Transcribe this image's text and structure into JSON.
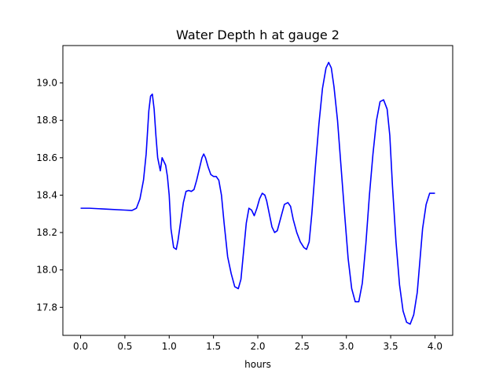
{
  "chart_data": {
    "type": "line",
    "title": "Water Depth h at gauge 2",
    "xlabel": "hours",
    "ylabel": "",
    "xlim": [
      -0.2,
      4.2
    ],
    "ylim": [
      17.65,
      19.2
    ],
    "xticks": [
      0.0,
      0.5,
      1.0,
      1.5,
      2.0,
      2.5,
      3.0,
      3.5,
      4.0
    ],
    "xtick_labels": [
      "0.0",
      "0.5",
      "1.0",
      "1.5",
      "2.0",
      "2.5",
      "3.0",
      "3.5",
      "4.0"
    ],
    "yticks": [
      17.8,
      18.0,
      18.2,
      18.4,
      18.6,
      18.8,
      19.0
    ],
    "ytick_labels": [
      "17.8",
      "18.0",
      "18.2",
      "18.4",
      "18.6",
      "18.8",
      "19.0"
    ],
    "grid": false,
    "series": [
      {
        "color": "#0000ff",
        "x": [
          0.0,
          0.05,
          0.1,
          0.3,
          0.5,
          0.58,
          0.63,
          0.67,
          0.71,
          0.74,
          0.77,
          0.79,
          0.81,
          0.83,
          0.85,
          0.87,
          0.9,
          0.92,
          0.94,
          0.96,
          0.98,
          1.0,
          1.02,
          1.05,
          1.08,
          1.1,
          1.13,
          1.16,
          1.19,
          1.22,
          1.25,
          1.28,
          1.31,
          1.34,
          1.37,
          1.39,
          1.41,
          1.44,
          1.47,
          1.5,
          1.53,
          1.56,
          1.59,
          1.62,
          1.66,
          1.7,
          1.74,
          1.78,
          1.81,
          1.84,
          1.87,
          1.9,
          1.93,
          1.96,
          1.99,
          2.02,
          2.05,
          2.08,
          2.1,
          2.13,
          2.16,
          2.19,
          2.22,
          2.26,
          2.3,
          2.34,
          2.37,
          2.4,
          2.44,
          2.48,
          2.52,
          2.55,
          2.58,
          2.61,
          2.65,
          2.69,
          2.73,
          2.77,
          2.8,
          2.83,
          2.86,
          2.9,
          2.94,
          2.98,
          3.02,
          3.06,
          3.1,
          3.14,
          3.18,
          3.22,
          3.26,
          3.3,
          3.34,
          3.38,
          3.42,
          3.46,
          3.49,
          3.52,
          3.56,
          3.6,
          3.64,
          3.68,
          3.72,
          3.76,
          3.8,
          3.83,
          3.86,
          3.9,
          3.94,
          3.98,
          4.0
        ],
        "y": [
          18.33,
          18.33,
          18.33,
          18.325,
          18.32,
          18.318,
          18.33,
          18.38,
          18.48,
          18.62,
          18.85,
          18.93,
          18.94,
          18.86,
          18.72,
          18.6,
          18.53,
          18.6,
          18.58,
          18.56,
          18.5,
          18.4,
          18.22,
          18.12,
          18.11,
          18.16,
          18.26,
          18.36,
          18.42,
          18.425,
          18.42,
          18.43,
          18.48,
          18.54,
          18.6,
          18.62,
          18.6,
          18.55,
          18.51,
          18.5,
          18.5,
          18.48,
          18.4,
          18.25,
          18.07,
          17.98,
          17.91,
          17.9,
          17.95,
          18.1,
          18.25,
          18.33,
          18.32,
          18.29,
          18.33,
          18.38,
          18.41,
          18.4,
          18.37,
          18.3,
          18.23,
          18.2,
          18.21,
          18.28,
          18.35,
          18.36,
          18.34,
          18.27,
          18.2,
          18.15,
          18.12,
          18.11,
          18.15,
          18.3,
          18.55,
          18.78,
          18.97,
          19.08,
          19.11,
          19.08,
          18.98,
          18.8,
          18.55,
          18.3,
          18.06,
          17.9,
          17.83,
          17.83,
          17.93,
          18.14,
          18.4,
          18.62,
          18.8,
          18.9,
          18.91,
          18.86,
          18.72,
          18.45,
          18.15,
          17.92,
          17.78,
          17.72,
          17.71,
          17.76,
          17.88,
          18.05,
          18.22,
          18.35,
          18.41,
          18.41,
          18.41
        ]
      }
    ]
  }
}
